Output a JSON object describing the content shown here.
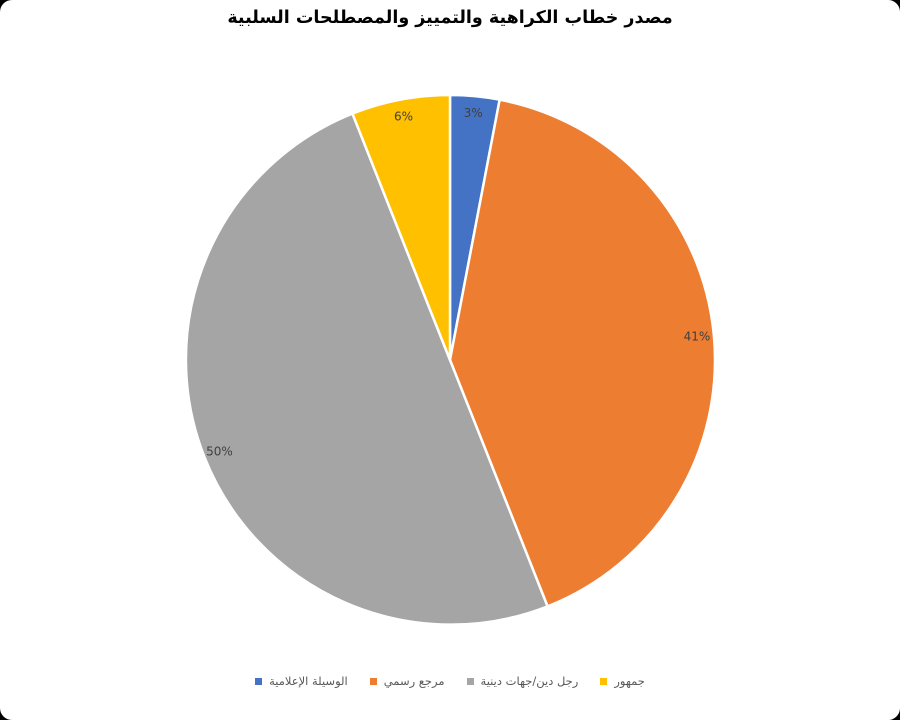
{
  "chart_data": {
    "type": "pie",
    "title": "مصدر خطاب الكراهية والتمييز والمصطلحات السلبية",
    "direction": "clockwise",
    "start_angle_deg": 0,
    "legend_position": "bottom",
    "data_label_color": "#404040",
    "slice_border_color": "#FFFFFF",
    "slices": [
      {
        "label": "الوسيلة الإعلامية",
        "value": 3,
        "percent_label": "3%",
        "color": "#4472C4"
      },
      {
        "label": "مرجع رسمي",
        "value": 41,
        "percent_label": "41%",
        "color": "#ED7D31"
      },
      {
        "label": "رجل دين/جهات دينية",
        "value": 50,
        "percent_label": "50%",
        "color": "#A5A5A5"
      },
      {
        "label": "جمهور",
        "value": 6,
        "percent_label": "6%",
        "color": "#FFC000"
      }
    ]
  }
}
